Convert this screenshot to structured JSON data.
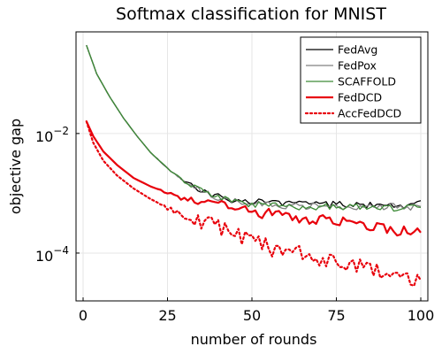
{
  "chart_data": {
    "type": "line",
    "title": "Softmax classification for MNIST",
    "xlabel": "number of rounds",
    "ylabel": "objective gap",
    "xlim": [
      0,
      100
    ],
    "ylim_log10": [
      -4.8,
      -0.3
    ],
    "y_scale": "log10",
    "x_ticks": [
      0,
      25,
      50,
      75,
      100
    ],
    "x_tick_labels": [
      "0",
      "25",
      "50",
      "75",
      "100"
    ],
    "y_ticks_log10": [
      -2,
      -4
    ],
    "y_tick_bases": [
      "10",
      "10"
    ],
    "y_tick_exponents": [
      "−2",
      "−4"
    ],
    "grid": true,
    "legend_position": "top-right",
    "legend_order": [
      "FedAvg",
      "FedPox",
      "SCAFFOLD",
      "FedDCD",
      "AccFedDCD"
    ],
    "series": [
      {
        "name": "FedAvg",
        "color": "#000000",
        "style": "solid",
        "width": 1.3,
        "x": [
          1,
          4,
          8,
          12,
          16,
          20,
          25,
          30,
          35,
          40,
          45,
          50,
          55,
          60,
          65,
          70,
          75,
          80,
          85,
          90,
          95,
          100
        ],
        "y": [
          0.3,
          0.1,
          0.04,
          0.018,
          0.009,
          0.0048,
          0.0026,
          0.0016,
          0.0011,
          0.00088,
          0.00078,
          0.00072,
          0.00069,
          0.00067,
          0.00066,
          0.00065,
          0.00064,
          0.00064,
          0.00063,
          0.00063,
          0.00063,
          0.00075
        ]
      },
      {
        "name": "FedPox",
        "color": "#808080",
        "style": "solid",
        "width": 1.3,
        "x": [
          1,
          4,
          8,
          12,
          16,
          20,
          25,
          30,
          35,
          40,
          45,
          50,
          55,
          60,
          65,
          70,
          75,
          80,
          85,
          90,
          95,
          100
        ],
        "y": [
          0.3,
          0.1,
          0.04,
          0.018,
          0.009,
          0.0048,
          0.0026,
          0.0016,
          0.0011,
          0.00085,
          0.00074,
          0.00068,
          0.00065,
          0.00063,
          0.00062,
          0.00061,
          0.0006,
          0.0006,
          0.0006,
          0.0006,
          0.00059,
          0.0006
        ]
      },
      {
        "name": "SCAFFOLD",
        "color": "#3d8b37",
        "style": "solid",
        "width": 1.3,
        "x": [
          1,
          4,
          8,
          12,
          16,
          20,
          25,
          30,
          35,
          40,
          45,
          50,
          55,
          60,
          65,
          70,
          75,
          80,
          85,
          90,
          95,
          100
        ],
        "y": [
          0.3,
          0.1,
          0.04,
          0.018,
          0.009,
          0.0048,
          0.0026,
          0.0016,
          0.0011,
          0.00083,
          0.00072,
          0.00066,
          0.00063,
          0.00061,
          0.0006,
          0.00059,
          0.00058,
          0.00058,
          0.00057,
          0.00057,
          0.00056,
          0.00058
        ]
      },
      {
        "name": "FedDCD",
        "color": "#e8000b",
        "style": "solid",
        "width": 2.2,
        "x": [
          1,
          3,
          6,
          10,
          15,
          20,
          25,
          30,
          35,
          40,
          45,
          50,
          55,
          60,
          65,
          70,
          75,
          80,
          85,
          90,
          95,
          100
        ],
        "y": [
          0.016,
          0.009,
          0.005,
          0.003,
          0.0018,
          0.0013,
          0.001,
          0.0008,
          0.00069,
          0.00062,
          0.00055,
          0.00049,
          0.00045,
          0.00041,
          0.00039,
          0.00036,
          0.00033,
          0.00031,
          0.00028,
          0.00025,
          0.00023,
          0.00022
        ]
      },
      {
        "name": "AccFedDCD",
        "color": "#e8000b",
        "style": "dotted",
        "width": 2.2,
        "x": [
          1,
          3,
          6,
          10,
          15,
          20,
          25,
          30,
          35,
          40,
          45,
          50,
          55,
          60,
          65,
          70,
          75,
          80,
          85,
          90,
          95,
          100
        ],
        "y": [
          0.016,
          0.007,
          0.0035,
          0.002,
          0.0012,
          0.0008,
          0.00055,
          0.00042,
          0.00033,
          0.00026,
          0.0002,
          0.00016,
          0.00013,
          0.00011,
          0.0001,
          8e-05,
          7e-05,
          6e-05,
          5.5e-05,
          5e-05,
          4.2e-05,
          3.5e-05
        ]
      }
    ]
  }
}
